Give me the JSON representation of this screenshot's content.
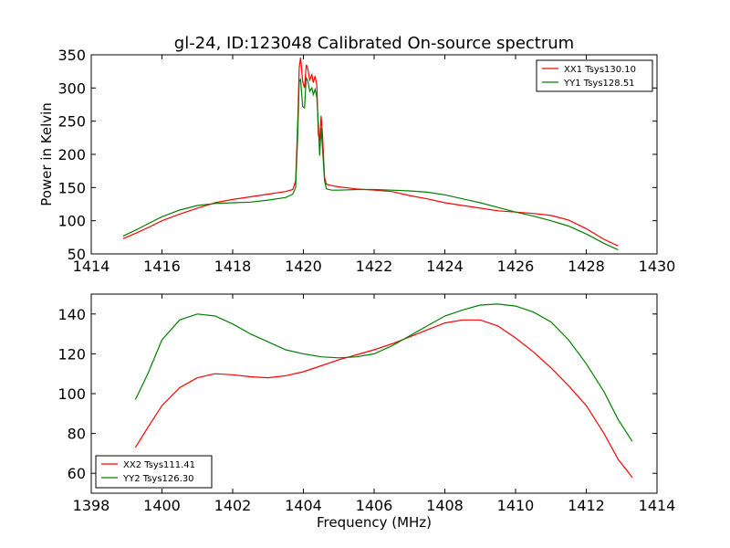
{
  "figure": {
    "title": "gl-24, ID:123048 Calibrated On-source spectrum"
  },
  "chart_data": [
    {
      "type": "line",
      "title": "gl-24, ID:123048 Calibrated On-source spectrum",
      "xlabel": "",
      "ylabel": "Power in Kelvin",
      "xlim": [
        1414,
        1430
      ],
      "ylim": [
        50,
        350
      ],
      "xticks": [
        1414,
        1416,
        1418,
        1420,
        1422,
        1424,
        1426,
        1428,
        1430
      ],
      "yticks": [
        50,
        100,
        150,
        200,
        250,
        300,
        350
      ],
      "legend_position": "top-right",
      "grid": false,
      "series": [
        {
          "name": "XX1 Tsys130.10",
          "color": "#ff0000",
          "points": [
            [
              1414.9,
              73
            ],
            [
              1415.3,
              82
            ],
            [
              1415.7,
              92
            ],
            [
              1416.0,
              100
            ],
            [
              1416.5,
              110
            ],
            [
              1417.0,
              119
            ],
            [
              1417.5,
              127
            ],
            [
              1418.0,
              132
            ],
            [
              1418.5,
              136
            ],
            [
              1419.0,
              140
            ],
            [
              1419.5,
              144
            ],
            [
              1419.7,
              147
            ],
            [
              1419.78,
              160
            ],
            [
              1419.84,
              250
            ],
            [
              1419.88,
              330
            ],
            [
              1419.92,
              346
            ],
            [
              1419.98,
              310
            ],
            [
              1420.03,
              300
            ],
            [
              1420.08,
              335
            ],
            [
              1420.12,
              330
            ],
            [
              1420.18,
              312
            ],
            [
              1420.24,
              320
            ],
            [
              1420.28,
              308
            ],
            [
              1420.33,
              318
            ],
            [
              1420.38,
              305
            ],
            [
              1420.42,
              230
            ],
            [
              1420.46,
              220
            ],
            [
              1420.5,
              258
            ],
            [
              1420.54,
              230
            ],
            [
              1420.6,
              165
            ],
            [
              1420.65,
              155
            ],
            [
              1420.8,
              153
            ],
            [
              1421.0,
              151
            ],
            [
              1421.5,
              148
            ],
            [
              1422.0,
              146
            ],
            [
              1422.5,
              144
            ],
            [
              1423.0,
              138
            ],
            [
              1423.5,
              133
            ],
            [
              1424.0,
              127
            ],
            [
              1424.5,
              123
            ],
            [
              1425.0,
              119
            ],
            [
              1425.5,
              115
            ],
            [
              1426.0,
              113
            ],
            [
              1426.5,
              111
            ],
            [
              1427.0,
              108
            ],
            [
              1427.5,
              101
            ],
            [
              1428.0,
              88
            ],
            [
              1428.5,
              72
            ],
            [
              1428.9,
              62
            ]
          ]
        },
        {
          "name": "YY1 Tsys128.51",
          "color": "#008000",
          "points": [
            [
              1414.9,
              77
            ],
            [
              1415.3,
              87
            ],
            [
              1415.7,
              98
            ],
            [
              1416.0,
              106
            ],
            [
              1416.5,
              116
            ],
            [
              1417.0,
              123
            ],
            [
              1417.5,
              126
            ],
            [
              1418.0,
              127
            ],
            [
              1418.5,
              128
            ],
            [
              1419.0,
              131
            ],
            [
              1419.5,
              135
            ],
            [
              1419.7,
              140
            ],
            [
              1419.78,
              150
            ],
            [
              1419.84,
              230
            ],
            [
              1419.88,
              310
            ],
            [
              1419.92,
              313
            ],
            [
              1419.98,
              272
            ],
            [
              1420.03,
              270
            ],
            [
              1420.08,
              315
            ],
            [
              1420.12,
              312
            ],
            [
              1420.18,
              295
            ],
            [
              1420.24,
              300
            ],
            [
              1420.28,
              290
            ],
            [
              1420.33,
              298
            ],
            [
              1420.38,
              286
            ],
            [
              1420.42,
              248
            ],
            [
              1420.46,
              198
            ],
            [
              1420.5,
              240
            ],
            [
              1420.54,
              210
            ],
            [
              1420.6,
              160
            ],
            [
              1420.65,
              148
            ],
            [
              1420.8,
              146
            ],
            [
              1421.0,
              146
            ],
            [
              1421.5,
              147
            ],
            [
              1422.0,
              147
            ],
            [
              1422.5,
              146
            ],
            [
              1423.0,
              145
            ],
            [
              1423.5,
              143
            ],
            [
              1424.0,
              139
            ],
            [
              1424.5,
              133
            ],
            [
              1425.0,
              127
            ],
            [
              1425.5,
              120
            ],
            [
              1426.0,
              113
            ],
            [
              1426.5,
              107
            ],
            [
              1427.0,
              100
            ],
            [
              1427.5,
              92
            ],
            [
              1428.0,
              80
            ],
            [
              1428.5,
              66
            ],
            [
              1428.9,
              56
            ]
          ]
        }
      ]
    },
    {
      "type": "line",
      "title": "",
      "xlabel": "Frequency (MHz)",
      "ylabel": "",
      "xlim": [
        1398,
        1414
      ],
      "ylim": [
        50,
        150
      ],
      "xticks": [
        1398,
        1400,
        1402,
        1404,
        1406,
        1408,
        1410,
        1412,
        1414
      ],
      "yticks": [
        60,
        80,
        100,
        120,
        140
      ],
      "legend_position": "bottom-left",
      "grid": false,
      "series": [
        {
          "name": "XX2 Tsys111.41",
          "color": "#ff0000",
          "points": [
            [
              1399.25,
              73
            ],
            [
              1399.6,
              83
            ],
            [
              1400.0,
              94
            ],
            [
              1400.5,
              103
            ],
            [
              1401.0,
              108
            ],
            [
              1401.5,
              110
            ],
            [
              1402.0,
              109.5
            ],
            [
              1402.5,
              108.5
            ],
            [
              1403.0,
              108
            ],
            [
              1403.5,
              109
            ],
            [
              1404.0,
              111
            ],
            [
              1404.5,
              114
            ],
            [
              1405.0,
              117
            ],
            [
              1405.5,
              119.5
            ],
            [
              1406.0,
              122
            ],
            [
              1406.5,
              125
            ],
            [
              1407.0,
              128.5
            ],
            [
              1407.5,
              132
            ],
            [
              1408.0,
              135.5
            ],
            [
              1408.5,
              137
            ],
            [
              1409.0,
              137
            ],
            [
              1409.5,
              134
            ],
            [
              1410.0,
              128
            ],
            [
              1410.5,
              121
            ],
            [
              1411.0,
              113
            ],
            [
              1411.5,
              104
            ],
            [
              1412.0,
              94
            ],
            [
              1412.5,
              80
            ],
            [
              1412.9,
              67
            ],
            [
              1413.3,
              58
            ]
          ]
        },
        {
          "name": "YY2 Tsys126.30",
          "color": "#008000",
          "points": [
            [
              1399.25,
              97
            ],
            [
              1399.6,
              110
            ],
            [
              1400.0,
              127
            ],
            [
              1400.5,
              137
            ],
            [
              1401.0,
              140
            ],
            [
              1401.5,
              139
            ],
            [
              1402.0,
              135
            ],
            [
              1402.5,
              130
            ],
            [
              1403.0,
              126
            ],
            [
              1403.5,
              122
            ],
            [
              1404.0,
              120
            ],
            [
              1404.5,
              118.5
            ],
            [
              1405.0,
              118
            ],
            [
              1405.5,
              118.5
            ],
            [
              1406.0,
              120
            ],
            [
              1406.5,
              124
            ],
            [
              1407.0,
              129
            ],
            [
              1407.5,
              134
            ],
            [
              1408.0,
              139
            ],
            [
              1408.5,
              142
            ],
            [
              1409.0,
              144.5
            ],
            [
              1409.5,
              145
            ],
            [
              1410.0,
              144
            ],
            [
              1410.5,
              141
            ],
            [
              1411.0,
              136
            ],
            [
              1411.5,
              127
            ],
            [
              1412.0,
              115
            ],
            [
              1412.5,
              101
            ],
            [
              1412.9,
              87
            ],
            [
              1413.3,
              76
            ]
          ]
        }
      ]
    }
  ]
}
